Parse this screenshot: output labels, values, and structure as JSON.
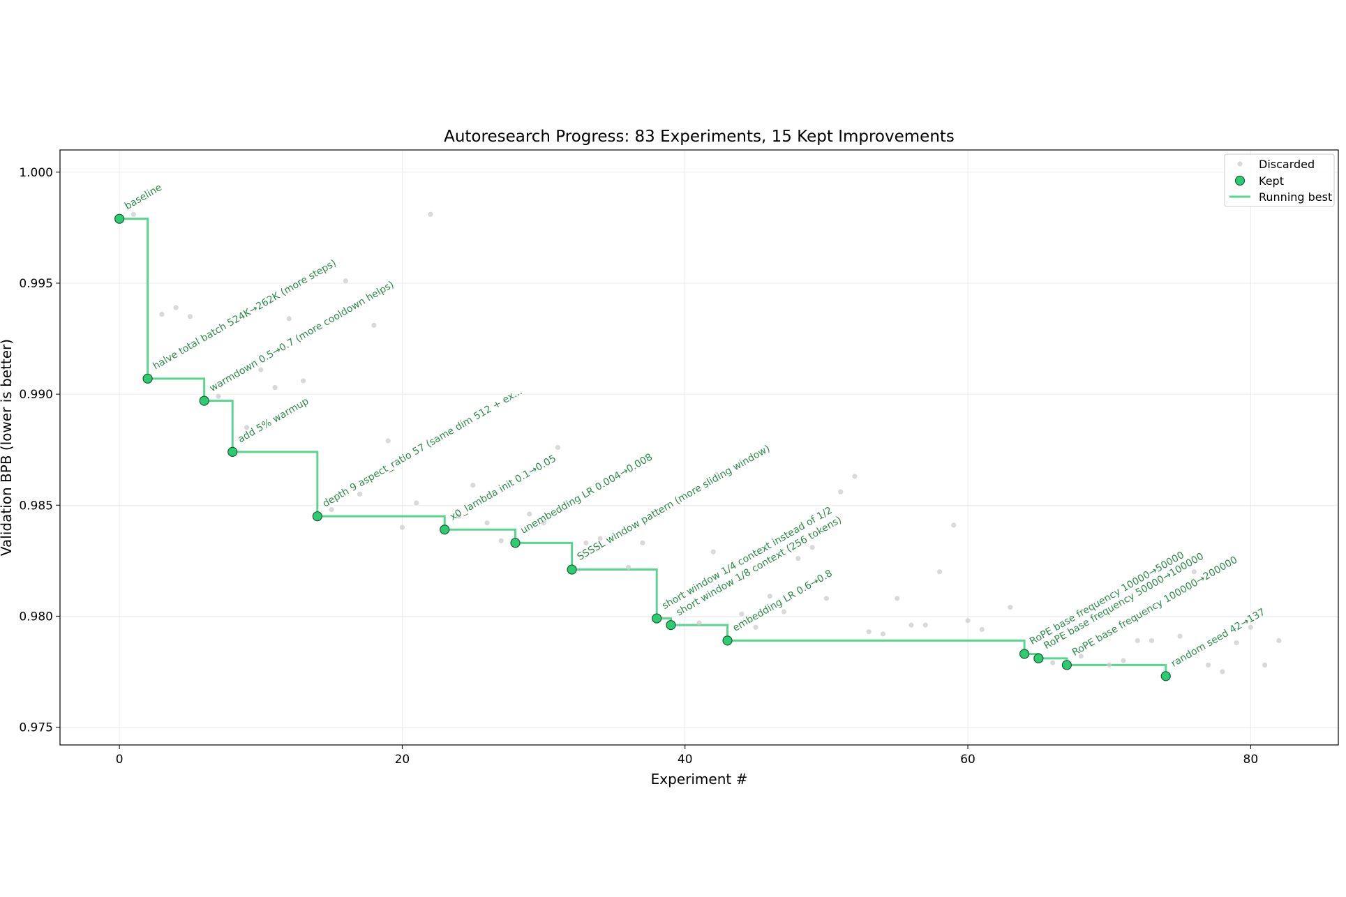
{
  "chart_data": {
    "type": "scatter",
    "title": "Autoresearch Progress: 83 Experiments, 15 Kept Improvements",
    "xlabel": "Experiment #",
    "ylabel": "Validation BPB (lower is better)",
    "xlim": [
      -4.2,
      86.2
    ],
    "ylim": [
      0.9742,
      1.001
    ],
    "xticks": [
      0,
      20,
      40,
      60,
      80
    ],
    "yticks": [
      0.975,
      0.98,
      0.985,
      0.99,
      0.995,
      1.0
    ],
    "xtick_labels": [
      "0",
      "20",
      "40",
      "60",
      "80"
    ],
    "ytick_labels": [
      "0.975",
      "0.980",
      "0.985",
      "0.990",
      "0.995",
      "1.000"
    ],
    "grid": true,
    "legend_position": "top-right",
    "legend": [
      "Discarded",
      "Kept",
      "Running best"
    ],
    "colors": {
      "kept": "#2ecc71",
      "kept_edge": "#1a5c33",
      "running_best": "#2ecc71",
      "discarded": "#cccccc",
      "annotation": "#2e8b4a"
    },
    "series": [
      {
        "name": "Discarded",
        "points": [
          [
            1,
            0.9981
          ],
          [
            3,
            0.9936
          ],
          [
            4,
            0.9939
          ],
          [
            5,
            0.9935
          ],
          [
            7,
            0.9899
          ],
          [
            9,
            0.9885
          ],
          [
            10,
            0.9911
          ],
          [
            11,
            0.9903
          ],
          [
            12,
            0.9934
          ],
          [
            13,
            0.9906
          ],
          [
            15,
            0.9848
          ],
          [
            16,
            0.9951
          ],
          [
            17,
            0.9855
          ],
          [
            18,
            0.9931
          ],
          [
            19,
            0.9879
          ],
          [
            20,
            0.984
          ],
          [
            21,
            0.9851
          ],
          [
            22,
            0.9981
          ],
          [
            24,
            0.9845
          ],
          [
            25,
            0.9859
          ],
          [
            26,
            0.9842
          ],
          [
            27,
            0.9834
          ],
          [
            29,
            0.9846
          ],
          [
            30,
            0.9842
          ],
          [
            31,
            0.9876
          ],
          [
            33,
            0.9833
          ],
          [
            34,
            0.9835
          ],
          [
            36,
            0.9822
          ],
          [
            37,
            0.9833
          ],
          [
            41,
            0.9797
          ],
          [
            42,
            0.9829
          ],
          [
            44,
            0.9801
          ],
          [
            45,
            0.9795
          ],
          [
            46,
            0.9809
          ],
          [
            47,
            0.9802
          ],
          [
            48,
            0.9826
          ],
          [
            49,
            0.9831
          ],
          [
            50,
            0.9808
          ],
          [
            51,
            0.9856
          ],
          [
            52,
            0.9863
          ],
          [
            53,
            0.9793
          ],
          [
            54,
            0.9792
          ],
          [
            55,
            0.9808
          ],
          [
            56,
            0.9796
          ],
          [
            57,
            0.9796
          ],
          [
            58,
            0.982
          ],
          [
            59,
            0.9841
          ],
          [
            60,
            0.9798
          ],
          [
            61,
            0.9794
          ],
          [
            63,
            0.9804
          ],
          [
            66,
            0.9779
          ],
          [
            68,
            0.9782
          ],
          [
            70,
            0.9778
          ],
          [
            71,
            0.978
          ],
          [
            72,
            0.9789
          ],
          [
            73,
            0.9789
          ],
          [
            75,
            0.9791
          ],
          [
            76,
            0.982
          ],
          [
            77,
            0.9778
          ],
          [
            78,
            0.9775
          ],
          [
            79,
            0.9788
          ],
          [
            80,
            0.9795
          ],
          [
            81,
            0.9778
          ],
          [
            82,
            0.9789
          ]
        ]
      },
      {
        "name": "Kept",
        "points": [
          [
            0,
            0.9979
          ],
          [
            2,
            0.9907
          ],
          [
            6,
            0.9897
          ],
          [
            8,
            0.9874
          ],
          [
            14,
            0.9845
          ],
          [
            23,
            0.9839
          ],
          [
            28,
            0.9833
          ],
          [
            32,
            0.9821
          ],
          [
            38,
            0.9799
          ],
          [
            39,
            0.9796
          ],
          [
            43,
            0.9789
          ],
          [
            64,
            0.9783
          ],
          [
            65,
            0.9781
          ],
          [
            67,
            0.9778
          ],
          [
            74,
            0.9773
          ]
        ]
      },
      {
        "name": "Running best",
        "x": [
          0,
          2,
          6,
          8,
          14,
          23,
          28,
          32,
          38,
          39,
          43,
          64,
          65,
          67,
          74
        ],
        "y": [
          0.9979,
          0.9907,
          0.9897,
          0.9874,
          0.9845,
          0.9839,
          0.9833,
          0.9821,
          0.9799,
          0.9796,
          0.9789,
          0.9783,
          0.9781,
          0.9778,
          0.9773
        ]
      }
    ],
    "annotations": [
      "baseline",
      "halve total batch 524K→262K (more steps)",
      "warmdown 0.5→0.7 (more cooldown helps)",
      "add 5% warmup",
      "depth 9 aspect_ratio 57 (same dim 512 + ex...",
      "x0_lambda init 0.1→0.05",
      "unembedding LR 0.004→0.008",
      "SSSSL window pattern (more sliding window)",
      "short window 1/4 context instead of 1/2",
      "short window 1/8 context (256 tokens)",
      "embedding LR 0.6→0.8",
      "RoPE base frequency 10000→50000",
      "RoPE base frequency 50000→100000",
      "RoPE base frequency 100000→200000",
      "random seed 42→137"
    ]
  }
}
